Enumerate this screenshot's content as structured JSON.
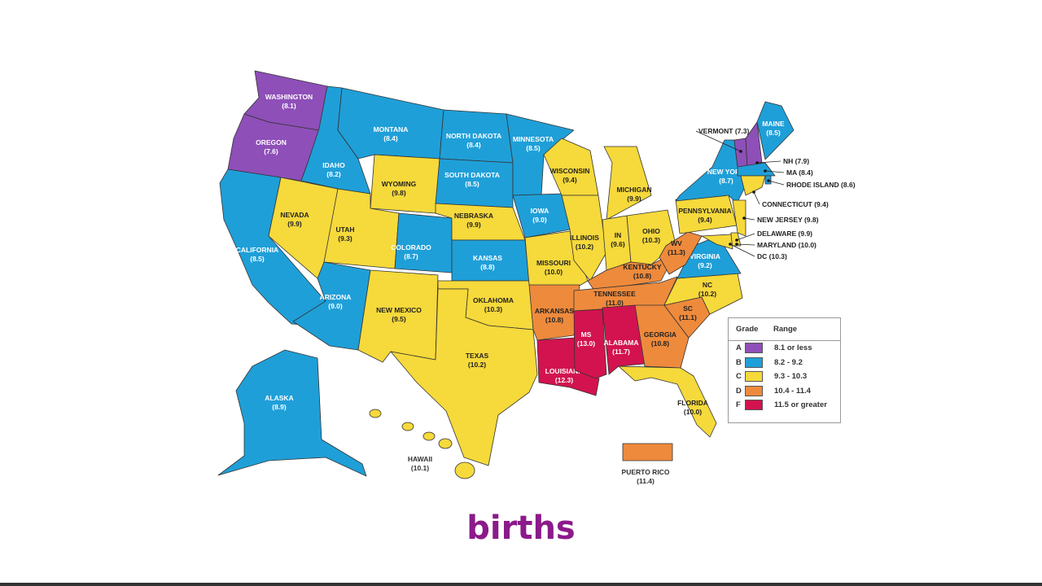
{
  "colors": {
    "A": "#8e4fb8",
    "B": "#1f9fd8",
    "C": "#f6d93b",
    "D": "#ee8a3c",
    "F": "#d2134f"
  },
  "states": [
    {
      "label": "WASHINGTON",
      "value": "8.1",
      "grade": "A"
    },
    {
      "label": "OREGON",
      "value": "7.6",
      "grade": "A"
    },
    {
      "label": "CALIFORNIA",
      "value": "8.5",
      "grade": "B"
    },
    {
      "label": "NEVADA",
      "value": "9.9",
      "grade": "C"
    },
    {
      "label": "IDAHO",
      "value": "8.2",
      "grade": "B"
    },
    {
      "label": "MONTANA",
      "value": "8.4",
      "grade": "B"
    },
    {
      "label": "WYOMING",
      "value": "9.8",
      "grade": "C"
    },
    {
      "label": "UTAH",
      "value": "9.3",
      "grade": "C"
    },
    {
      "label": "ARIZONA",
      "value": "9.0",
      "grade": "B"
    },
    {
      "label": "COLORADO",
      "value": "8.7",
      "grade": "B"
    },
    {
      "label": "NEW MEXICO",
      "value": "9.5",
      "grade": "C"
    },
    {
      "label": "NORTH DAKOTA",
      "value": "8.4",
      "grade": "B"
    },
    {
      "label": "SOUTH DAKOTA",
      "value": "8.5",
      "grade": "B"
    },
    {
      "label": "NEBRASKA",
      "value": "9.9",
      "grade": "C"
    },
    {
      "label": "KANSAS",
      "value": "8.8",
      "grade": "B"
    },
    {
      "label": "OKLAHOMA",
      "value": "10.3",
      "grade": "C"
    },
    {
      "label": "TEXAS",
      "value": "10.2",
      "grade": "C"
    },
    {
      "label": "MINNESOTA",
      "value": "8.5",
      "grade": "B"
    },
    {
      "label": "IOWA",
      "value": "9.0",
      "grade": "B"
    },
    {
      "label": "MISSOURI",
      "value": "10.0",
      "grade": "C"
    },
    {
      "label": "ARKANSAS",
      "value": "10.8",
      "grade": "D"
    },
    {
      "label": "LOUISIANA",
      "value": "12.3",
      "grade": "F"
    },
    {
      "label": "WISCONSIN",
      "value": "9.4",
      "grade": "C"
    },
    {
      "label": "ILLINOIS",
      "value": "10.2",
      "grade": "C"
    },
    {
      "label": "MICHIGAN",
      "value": "9.9",
      "grade": "C"
    },
    {
      "label": "IN",
      "value": "9.6",
      "grade": "C"
    },
    {
      "label": "OHIO",
      "value": "10.3",
      "grade": "C"
    },
    {
      "label": "KENTUCKY",
      "value": "10.8",
      "grade": "D"
    },
    {
      "label": "TENNESSEE",
      "value": "11.0",
      "grade": "D"
    },
    {
      "label": "MS",
      "value": "13.0",
      "grade": "F"
    },
    {
      "label": "ALABAMA",
      "value": "11.7",
      "grade": "F"
    },
    {
      "label": "GEORGIA",
      "value": "10.8",
      "grade": "D"
    },
    {
      "label": "FLORIDA",
      "value": "10.0",
      "grade": "C"
    },
    {
      "label": "SC",
      "value": "11.1",
      "grade": "D"
    },
    {
      "label": "NC",
      "value": "10.2",
      "grade": "C"
    },
    {
      "label": "VIRGINIA",
      "value": "9.2",
      "grade": "B"
    },
    {
      "label": "WV",
      "value": "11.3",
      "grade": "D"
    },
    {
      "label": "PENNSYLVANIA",
      "value": "9.4",
      "grade": "C"
    },
    {
      "label": "NEW YORK",
      "value": "8.7",
      "grade": "B"
    },
    {
      "label": "MAINE",
      "value": "8.5",
      "grade": "B"
    },
    {
      "label": "ALASKA",
      "value": "8.9",
      "grade": "B"
    },
    {
      "label": "HAWAII",
      "value": "10.1",
      "grade": "C"
    },
    {
      "label": "PUERTO RICO",
      "value": "11.4",
      "grade": "D"
    },
    {
      "label": "VERMONT",
      "value": "7.3",
      "grade": "A"
    },
    {
      "label": "NH",
      "value": "7.9",
      "grade": "A"
    },
    {
      "label": "MA",
      "value": "8.4",
      "grade": "B"
    },
    {
      "label": "RHODE ISLAND",
      "value": "8.6",
      "grade": "B"
    },
    {
      "label": "CONNECTICUT",
      "value": "9.4",
      "grade": "C"
    },
    {
      "label": "NEW JERSEY",
      "value": "9.8",
      "grade": "C"
    },
    {
      "label": "DELAWARE",
      "value": "9.9",
      "grade": "C"
    },
    {
      "label": "MARYLAND",
      "value": "10.0",
      "grade": "C"
    },
    {
      "label": "DC",
      "value": "10.3",
      "grade": "C"
    }
  ],
  "legend": {
    "grade_header": "Grade",
    "range_header": "Range",
    "rows": [
      {
        "grade": "A",
        "range": "8.1 or less"
      },
      {
        "grade": "B",
        "range": "8.2 - 9.2"
      },
      {
        "grade": "C",
        "range": "9.3 - 10.3"
      },
      {
        "grade": "D",
        "range": "10.4 - 11.4"
      },
      {
        "grade": "F",
        "range": "11.5 or greater"
      }
    ]
  },
  "caption": "births"
}
